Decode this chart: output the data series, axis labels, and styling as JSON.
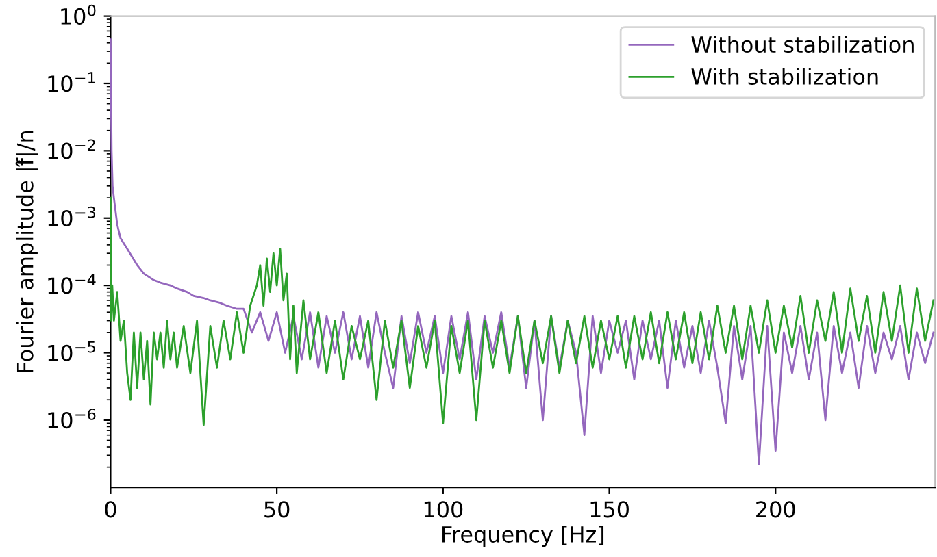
{
  "chart_data": {
    "type": "line",
    "xlabel": "Frequency [Hz]",
    "ylabel": "Fourier amplitude |f̂|/n",
    "log": "y",
    "legend": "top right",
    "xlim": [
      0,
      248
    ],
    "xticks": [
      0,
      50,
      100,
      150,
      200
    ],
    "ylim": [
      1e-07,
      1
    ],
    "yticks": [
      {
        "value": 1e-06,
        "label": "10$^{−6}$"
      },
      {
        "value": 1e-05,
        "label": "10$^{−5}$"
      },
      {
        "value": 0.0001,
        "label": "10$^{−4}$"
      },
      {
        "value": 0.001,
        "label": "10$^{−3}$"
      },
      {
        "value": 0.01,
        "label": "10$^{−2}$"
      },
      {
        "value": 0.1,
        "label": "10$^{−1}$"
      },
      {
        "value": 1,
        "label": "10$^{0}$"
      }
    ],
    "series": [
      {
        "name": "Without stabilization",
        "color": "#9467bd",
        "x": [
          0,
          0.3,
          0.6,
          1,
          2,
          3,
          5,
          8,
          10,
          13,
          15,
          18,
          20,
          23,
          25,
          28,
          30,
          33,
          35,
          38,
          40,
          42.5,
          45,
          47.5,
          50,
          52.5,
          55,
          57.5,
          60,
          62.5,
          65,
          67.5,
          70,
          72.5,
          75,
          77.5,
          80,
          82.5,
          85,
          87.5,
          90,
          92.5,
          95,
          97.5,
          100,
          102.5,
          105,
          107.5,
          110,
          112.5,
          115,
          117.5,
          120,
          122.5,
          125,
          127.5,
          130,
          132.5,
          135,
          137.5,
          140,
          142.5,
          145,
          147.5,
          150,
          152.5,
          155,
          157.5,
          160,
          162.5,
          165,
          167.5,
          170,
          172.5,
          175,
          177.5,
          180,
          182.5,
          185,
          187.5,
          190,
          192.5,
          195,
          197.5,
          200,
          202.5,
          205,
          207.5,
          210,
          212.5,
          215,
          217.5,
          220,
          222.5,
          225,
          227.5,
          230,
          232.5,
          235,
          237.5,
          240,
          242.5,
          245,
          247.5
        ],
        "values": [
          0.45,
          0.01,
          0.003,
          0.002,
          0.0008,
          0.0005,
          0.00035,
          0.0002,
          0.00015,
          0.00012,
          0.00011,
          0.0001,
          9e-05,
          8e-05,
          7e-05,
          6.5e-05,
          6e-05,
          5.5e-05,
          5e-05,
          4.5e-05,
          4.5e-05,
          2e-05,
          4e-05,
          1.5e-05,
          4e-05,
          1e-05,
          3.5e-05,
          8e-06,
          4e-05,
          6e-06,
          3.5e-05,
          1e-05,
          4e-05,
          8e-06,
          3.5e-05,
          6e-06,
          4e-05,
          1e-05,
          3e-06,
          3.5e-05,
          7e-06,
          4e-05,
          1e-05,
          3.5e-05,
          5e-06,
          3.5e-05,
          8e-06,
          4e-05,
          4e-06,
          3.5e-05,
          1e-05,
          4e-05,
          6e-06,
          3.5e-05,
          3e-06,
          3e-05,
          1e-06,
          3.5e-05,
          6e-06,
          3e-05,
          1e-05,
          6e-07,
          3.5e-05,
          5e-06,
          3e-05,
          1e-05,
          3e-05,
          4e-06,
          3e-05,
          8e-06,
          3e-05,
          3e-06,
          3e-05,
          6e-06,
          2.5e-05,
          5e-06,
          3e-05,
          6e-06,
          9e-07,
          2.5e-05,
          4e-06,
          2.5e-05,
          2.2e-07,
          2.5e-05,
          3.5e-07,
          2e-05,
          5e-06,
          2.5e-05,
          4e-06,
          2e-05,
          1e-06,
          2.5e-05,
          5e-06,
          2e-05,
          3e-06,
          2.5e-05,
          5e-06,
          2e-05,
          8e-06,
          2.5e-05,
          4e-06,
          2e-05,
          7e-06,
          2e-05
        ]
      },
      {
        "name": "With stabilization",
        "color": "#2ca02c",
        "x": [
          0,
          0.2,
          0.5,
          1,
          2,
          3,
          4,
          5,
          6,
          7,
          8,
          9,
          10,
          11,
          12,
          13,
          14,
          15,
          16,
          17,
          18,
          19,
          20,
          22,
          24,
          26,
          28,
          30,
          32,
          34,
          36,
          38,
          40,
          42,
          44,
          45,
          46,
          47,
          48,
          49,
          50,
          51,
          52,
          53,
          54,
          55,
          56,
          58,
          60,
          62.5,
          65,
          67.5,
          70,
          72.5,
          75,
          77.5,
          80,
          82.5,
          85,
          87.5,
          90,
          92.5,
          95,
          97.5,
          100,
          102.5,
          105,
          107.5,
          110,
          112.5,
          115,
          117.5,
          120,
          122.5,
          125,
          127.5,
          130,
          132.5,
          135,
          137.5,
          140,
          142.5,
          145,
          147.5,
          150,
          152.5,
          155,
          157.5,
          160,
          162.5,
          165,
          167.5,
          170,
          172.5,
          175,
          177.5,
          180,
          182.5,
          185,
          187.5,
          190,
          192.5,
          195,
          197.5,
          200,
          202.5,
          205,
          207.5,
          210,
          212.5,
          215,
          217.5,
          220,
          222.5,
          225,
          227.5,
          230,
          232.5,
          235,
          237.5,
          240,
          242.5,
          245,
          247.5
        ],
        "values": [
          0.002,
          3e-05,
          0.0001,
          3e-05,
          8e-05,
          1.5e-05,
          3e-05,
          5e-06,
          2e-06,
          2e-05,
          3e-06,
          2e-05,
          4e-06,
          1.5e-05,
          1.7e-06,
          2e-05,
          8e-06,
          2e-05,
          6e-06,
          3e-05,
          8e-06,
          2e-05,
          6e-06,
          2.5e-05,
          5e-06,
          3e-05,
          8.5e-07,
          2.5e-05,
          6e-06,
          3e-05,
          8e-06,
          4e-05,
          1e-05,
          5e-05,
          0.0001,
          0.0002,
          5e-05,
          0.00025,
          8e-05,
          0.0003,
          0.0001,
          0.00035,
          6e-05,
          0.00015,
          8e-06,
          5e-05,
          5e-06,
          6e-05,
          8e-06,
          4e-05,
          5e-06,
          3e-05,
          4e-06,
          2.5e-05,
          8e-06,
          3e-05,
          2e-06,
          3e-05,
          6e-06,
          3e-05,
          3e-06,
          2.5e-05,
          6e-06,
          3e-05,
          9e-07,
          2.5e-05,
          5e-06,
          3e-05,
          1e-06,
          3e-05,
          6e-06,
          3e-05,
          5e-06,
          3.5e-05,
          5e-06,
          3e-05,
          7e-06,
          3.5e-05,
          5e-06,
          3e-05,
          7e-06,
          3.5e-05,
          6e-06,
          3e-05,
          8e-06,
          3.5e-05,
          6e-06,
          3.5e-05,
          8e-06,
          4e-05,
          7e-06,
          4e-05,
          8e-06,
          4e-05,
          7e-06,
          4e-05,
          8e-06,
          5e-05,
          1e-05,
          5e-05,
          8e-06,
          5e-05,
          1e-05,
          6e-05,
          1e-05,
          5e-05,
          1.2e-05,
          7e-05,
          1e-05,
          6e-05,
          1.5e-05,
          8e-05,
          1e-05,
          9e-05,
          1.5e-05,
          7e-05,
          1e-05,
          8e-05,
          1.5e-05,
          0.0001,
          1e-05,
          9e-05,
          1.5e-05,
          6e-05
        ]
      }
    ]
  }
}
